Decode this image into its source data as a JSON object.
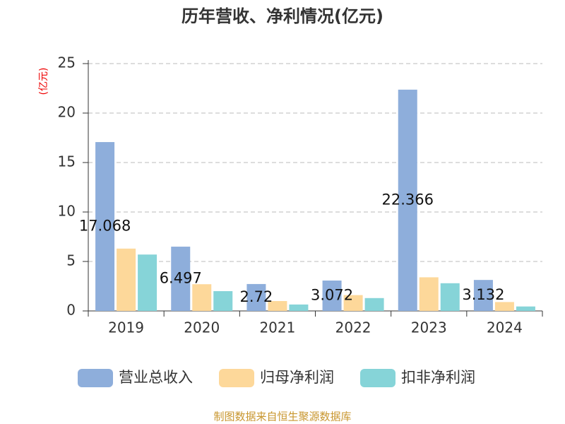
{
  "chart_data": {
    "type": "bar",
    "title": "历年营收、净利情况(亿元)",
    "y_label": "(亿元)",
    "categories": [
      "2019",
      "2020",
      "2021",
      "2022",
      "2023",
      "2024"
    ],
    "series": [
      {
        "name": "营业总收入",
        "color": "#8eaedb",
        "values": [
          17.068,
          6.497,
          2.72,
          3.072,
          22.366,
          3.132
        ],
        "show_labels": true
      },
      {
        "name": "归母净利润",
        "color": "#fdd89a",
        "values": [
          6.3,
          2.7,
          1.0,
          1.6,
          3.4,
          0.9
        ],
        "show_labels": false
      },
      {
        "name": "扣非净利润",
        "color": "#86d4d8",
        "values": [
          5.7,
          2.0,
          0.65,
          1.3,
          2.8,
          0.45
        ],
        "show_labels": false
      }
    ],
    "ylim": [
      0,
      25
    ],
    "yticks": [
      0,
      5,
      10,
      15,
      20,
      25
    ],
    "grid": true,
    "legend": "bottom",
    "source": "制图数据来自恒生聚源数据库"
  }
}
